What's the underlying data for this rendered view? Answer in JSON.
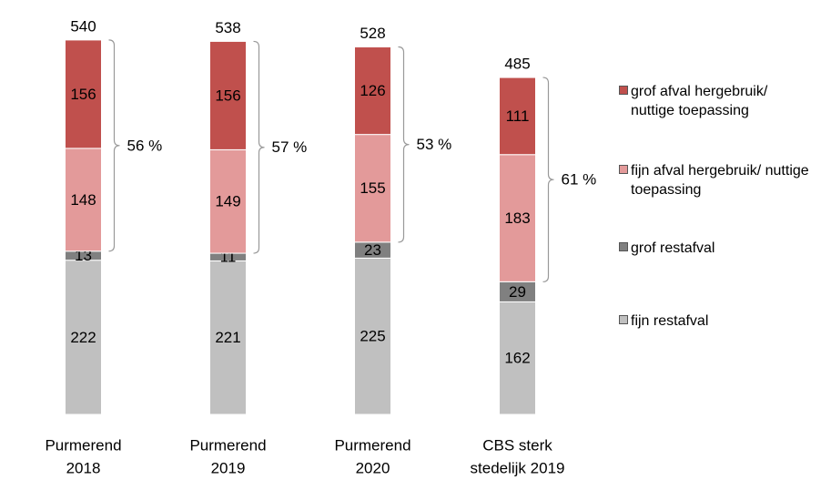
{
  "chart_data": {
    "type": "stacked_bar",
    "categories": [
      [
        "Purmerend",
        "2018"
      ],
      [
        "Purmerend",
        "2019"
      ],
      [
        "Purmerend",
        "2020"
      ],
      [
        "CBS sterk",
        "stedelijk 2019"
      ]
    ],
    "series": [
      {
        "name": "fijn restafval",
        "color": "#c0c0c0",
        "values": [
          222,
          221,
          225,
          162
        ]
      },
      {
        "name": "grof restafval",
        "color": "#808080",
        "values": [
          13,
          11,
          23,
          29
        ]
      },
      {
        "name": "fijn afval hergebruik/ nuttige toepassing",
        "color": "#e39a9a",
        "values": [
          148,
          149,
          155,
          183
        ]
      },
      {
        "name": "grof afval hergebruik/ nuttige toepassing",
        "color": "#c0504d",
        "values": [
          156,
          156,
          126,
          111
        ]
      }
    ],
    "totals": [
      540,
      538,
      528,
      485
    ],
    "percentages": [
      56,
      57,
      53,
      61
    ],
    "percentage_labels": [
      "56 %",
      "57 %",
      "53 %",
      "61 %"
    ],
    "ylim": [
      0,
      590
    ]
  }
}
